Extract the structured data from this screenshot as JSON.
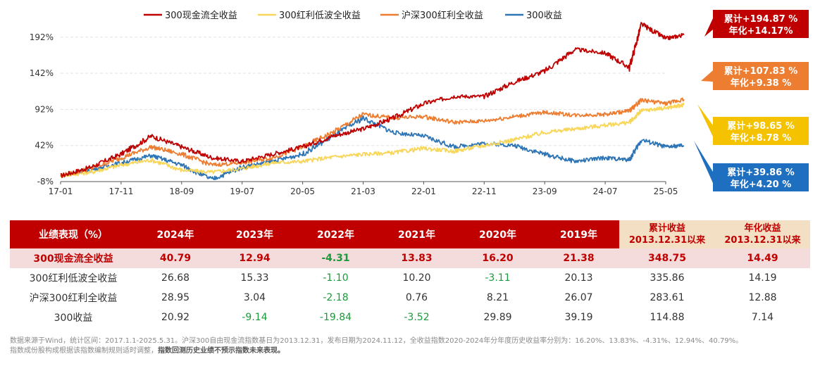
{
  "chart_data": {
    "type": "line",
    "x_ticks": [
      "17-01",
      "17-11",
      "18-09",
      "19-07",
      "20-05",
      "21-03",
      "22-01",
      "22-11",
      "23-09",
      "24-07",
      "25-05"
    ],
    "y_ticks": [
      "192%",
      "142%",
      "92%",
      "42%",
      "-8%"
    ],
    "ylim": [
      -8,
      222
    ],
    "series": [
      {
        "name": "300现金流全收益",
        "color": "#c00000",
        "x": [
          0,
          0.5,
          1,
          1.5,
          2,
          2.5,
          3,
          3.5,
          4,
          4.5,
          5,
          5.5,
          6,
          6.5,
          7,
          7.5,
          8,
          8.5,
          9,
          9.4,
          9.6,
          10,
          10.3
        ],
        "y": [
          0,
          12,
          30,
          55,
          40,
          25,
          20,
          30,
          40,
          55,
          65,
          80,
          100,
          110,
          110,
          130,
          145,
          175,
          170,
          150,
          210,
          190,
          195
        ]
      },
      {
        "name": "300红利低波全收益",
        "color": "#f7d65a",
        "x": [
          0,
          0.5,
          1,
          1.5,
          2,
          2.5,
          3,
          3.5,
          4,
          4.5,
          5,
          5.5,
          6,
          6.5,
          7,
          7.5,
          8,
          8.5,
          9,
          9.4,
          9.6,
          10,
          10.3
        ],
        "y": [
          0,
          5,
          15,
          22,
          8,
          5,
          10,
          18,
          20,
          26,
          30,
          32,
          38,
          34,
          42,
          50,
          60,
          65,
          70,
          74,
          90,
          94,
          98
        ]
      },
      {
        "name": "沪深300红利全收益",
        "color": "#ed7d31",
        "x": [
          0,
          0.5,
          1,
          1.5,
          2,
          2.5,
          3,
          3.5,
          4,
          4.5,
          5,
          5.5,
          6,
          6.5,
          7,
          7.5,
          8,
          8.5,
          9,
          9.4,
          9.6,
          10,
          10.3
        ],
        "y": [
          0,
          10,
          25,
          40,
          30,
          15,
          18,
          25,
          40,
          60,
          85,
          80,
          82,
          74,
          76,
          82,
          88,
          84,
          85,
          90,
          105,
          100,
          106
        ]
      },
      {
        "name": "300收益",
        "color": "#2e75b6",
        "x": [
          0,
          0.5,
          1,
          1.5,
          2,
          2.5,
          3,
          3.5,
          4,
          4.5,
          5,
          5.5,
          6,
          6.5,
          7,
          7.5,
          8,
          8.5,
          9,
          9.4,
          9.6,
          10,
          10.3
        ],
        "y": [
          0,
          8,
          18,
          28,
          15,
          -5,
          12,
          20,
          30,
          55,
          80,
          60,
          55,
          40,
          45,
          42,
          30,
          20,
          25,
          22,
          50,
          40,
          42
        ]
      }
    ]
  },
  "callouts": [
    {
      "line1": "累计+194.87 %",
      "line2": "年化+14.17%",
      "color": "#c00000"
    },
    {
      "line1": "累计+107.83 %",
      "line2": "年化+9.38 %",
      "color": "#ed7d31"
    },
    {
      "line1": "累计+98.65 %",
      "line2": "年化+8.78 %",
      "color": "#f5c200"
    },
    {
      "line1": "累计+39.86 %",
      "line2": "年化+4.20 %",
      "color": "#1f6fc0"
    }
  ],
  "table": {
    "headers": [
      "业绩表现（%）",
      "2024年",
      "2023年",
      "2022年",
      "2021年",
      "2020年",
      "2019年"
    ],
    "cum_header": [
      "累计收益",
      "2013.12.31以来"
    ],
    "ann_header": [
      "年化收益",
      "2013.12.31以来"
    ],
    "rows": [
      {
        "name": "300现金流全收益",
        "values": [
          "40.79",
          "12.94",
          "-4.31",
          "13.83",
          "16.20",
          "21.38",
          "348.75",
          "14.49"
        ]
      },
      {
        "name": "300红利低波全收益",
        "values": [
          "26.68",
          "15.33",
          "-1.10",
          "10.20",
          "-3.11",
          "20.13",
          "335.86",
          "14.19"
        ]
      },
      {
        "name": "沪深300红利全收益",
        "values": [
          "28.95",
          "3.04",
          "-2.18",
          "0.76",
          "8.21",
          "26.07",
          "283.61",
          "12.88"
        ]
      },
      {
        "name": "300收益",
        "values": [
          "20.92",
          "-9.14",
          "-19.84",
          "-3.52",
          "29.89",
          "39.19",
          "114.88",
          "7.14"
        ]
      }
    ]
  },
  "notes": {
    "line1": "数据来源于Wind，统计区间：2017.1.1-2025.5.31。沪深300自由现金流指数基日为2013.12.31，发布日期为2024.11.12，全收益指数2020-2024年分年度历史收益率分别为：16.20%、13.83%、-4.31%、12.94%、40.79%。",
    "line2_plain": "指数成份股构成根据该指数编制规则适时调整，",
    "line2_bold": "指数回测历史业绩不预示指数未来表现。"
  }
}
